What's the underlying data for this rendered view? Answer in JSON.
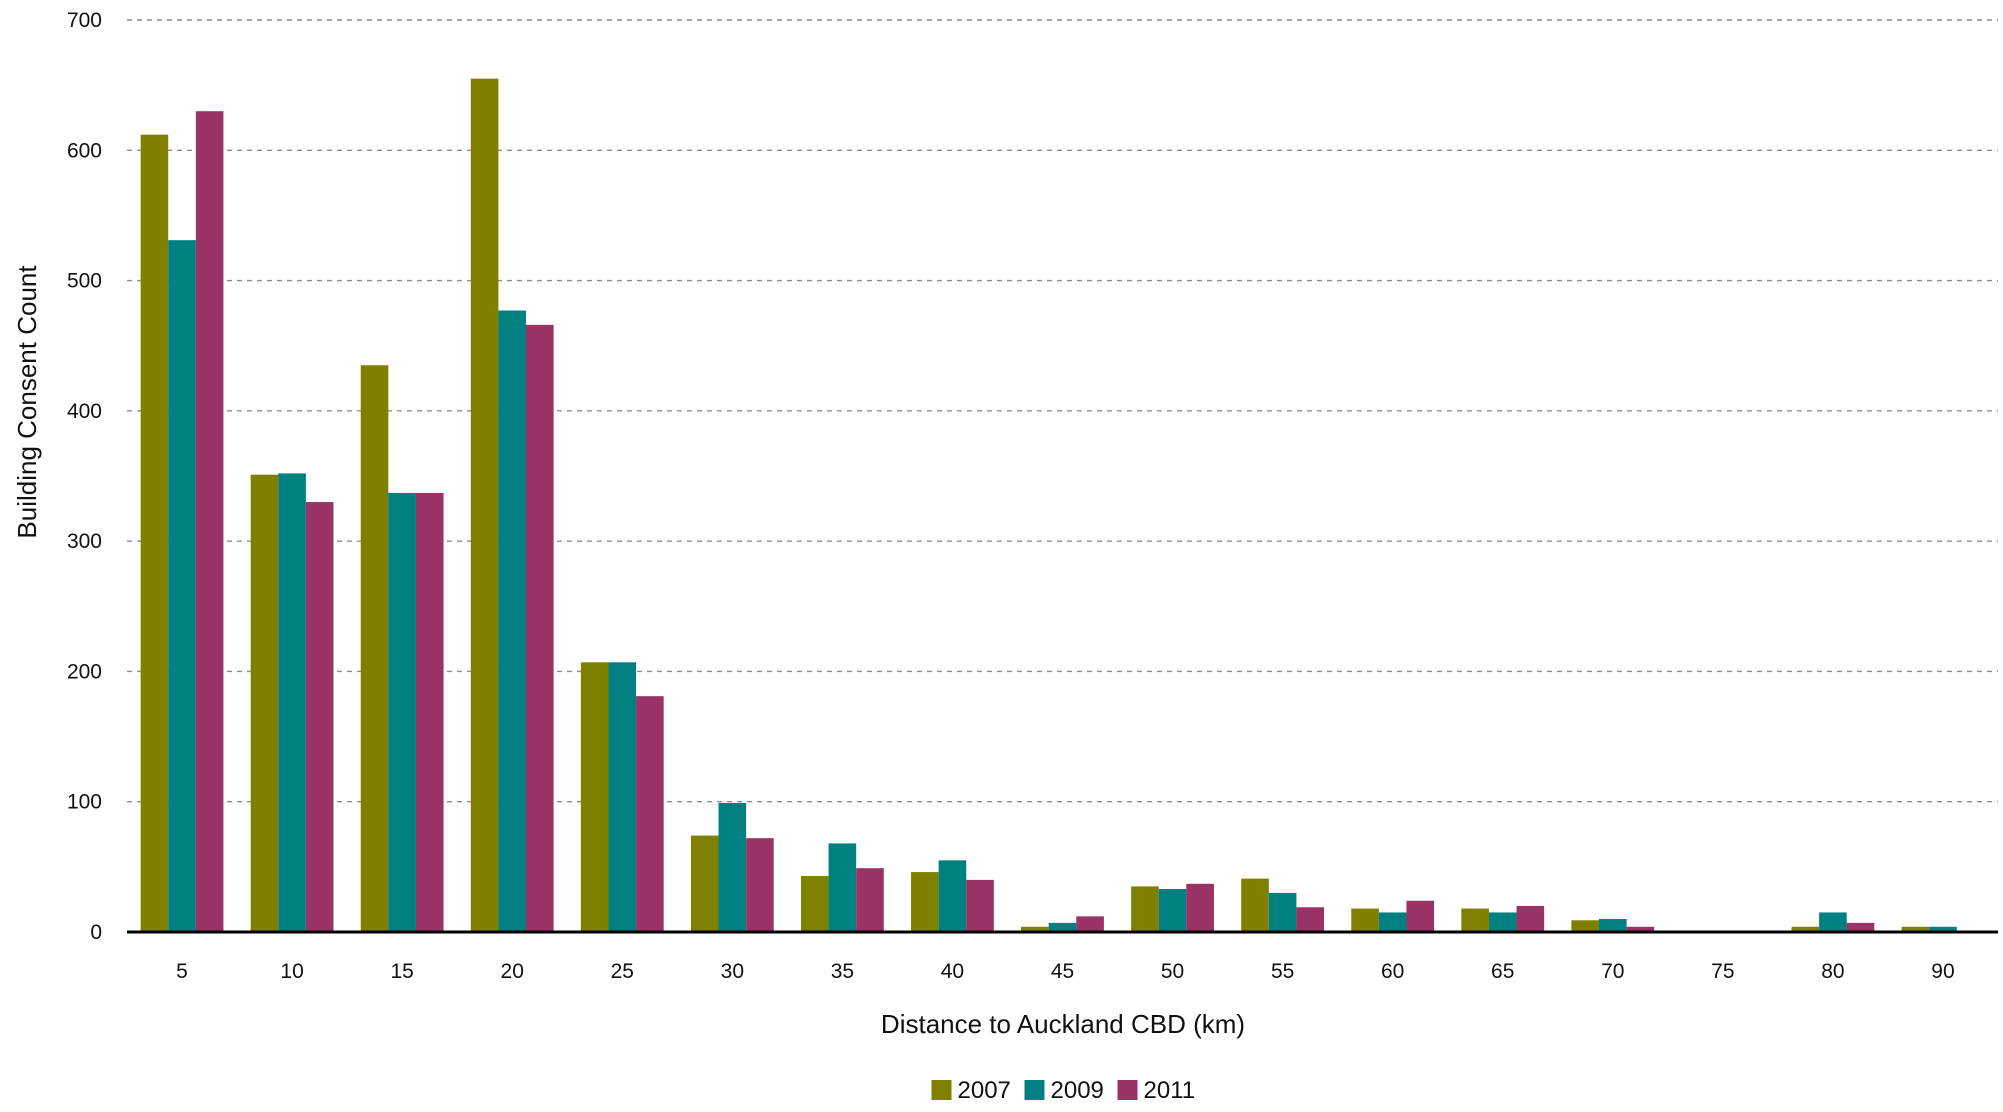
{
  "chart_data": {
    "type": "bar",
    "xlabel": "Distance to Auckland CBD (km)",
    "ylabel": "Building Consent Count",
    "ylim": [
      0,
      700
    ],
    "yticks": [
      0,
      100,
      200,
      300,
      400,
      500,
      600,
      700
    ],
    "grid": true,
    "legend_position": "bottom-center",
    "categories": [
      "5",
      "10",
      "15",
      "20",
      "25",
      "30",
      "35",
      "40",
      "45",
      "50",
      "55",
      "60",
      "65",
      "70",
      "75",
      "80",
      "90"
    ],
    "series": [
      {
        "name": "2007",
        "color": "#808000",
        "values": [
          612,
          351,
          435,
          655,
          207,
          74,
          43,
          46,
          4,
          35,
          41,
          18,
          18,
          9,
          0,
          4,
          4
        ]
      },
      {
        "name": "2009",
        "color": "#008080",
        "values": [
          531,
          352,
          337,
          477,
          207,
          99,
          68,
          55,
          7,
          33,
          30,
          15,
          15,
          10,
          0,
          15,
          4
        ]
      },
      {
        "name": "2011",
        "color": "#993366",
        "values": [
          630,
          330,
          337,
          466,
          181,
          72,
          49,
          40,
          12,
          37,
          19,
          24,
          20,
          4,
          0,
          7,
          0
        ]
      }
    ]
  }
}
